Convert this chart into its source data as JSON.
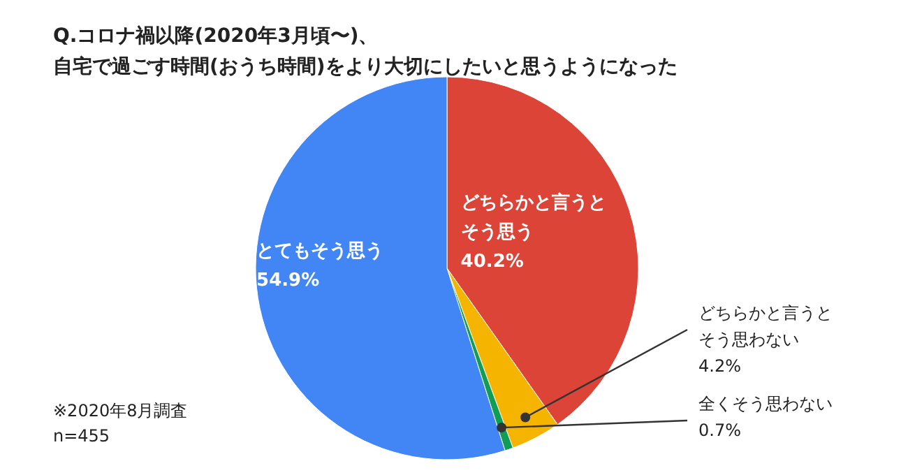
{
  "chart_data": {
    "type": "pie",
    "title": "Q.コロナ禍以降(2020年3月頃〜)、",
    "subtitle": "自宅で過ごす時間(おうち時間)をより大切にしたいと思うようになった",
    "categories": [
      "どちらかと言うとそう思う",
      "どちらかと言うとそう思わない",
      "全くそう思わない",
      "とてもそう思う"
    ],
    "values": [
      40.2,
      4.2,
      0.7,
      54.9
    ],
    "value_labels": [
      "40.2%",
      "4.2%",
      "0.7%",
      "54.9%"
    ],
    "colors": [
      "#db4437",
      "#f4b400",
      "#0f9d58",
      "#4285f4"
    ],
    "legend": false,
    "annotations": [
      "※2020年8月調査",
      "n=455"
    ]
  }
}
